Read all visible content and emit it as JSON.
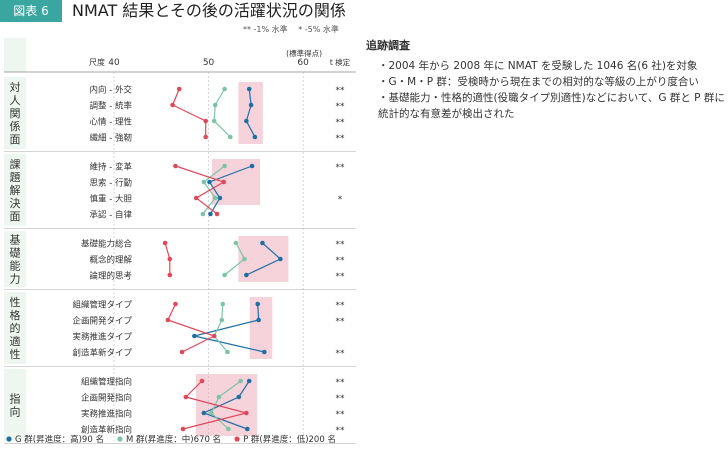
{
  "header": {
    "badge": "図表 6",
    "title": "NMAT 結果とその後の活躍状況の関係",
    "sig_legend": "**  -1% 水準　 *  -5% 水準"
  },
  "notes": {
    "title": "追跡調査",
    "items": [
      "・2004 年から 2008 年に NMAT を受験した 1046 名(6 社)を対象",
      "・G・M・P 群：受検時から現在までの相対的な等級の上がり度合い",
      "・基礎能力・性格的適性(役職タイプ別適性)などにおいて、G 群と P 群に統計的な有意差が検出された"
    ]
  },
  "colors": {
    "G": "#1f6fa3",
    "M": "#7cc4a5",
    "P": "#e0485a",
    "band": "#eef6f0",
    "highlight": "#f6d3db",
    "grid": "#bbbbbb"
  },
  "chart_data": {
    "type": "line",
    "scale_label": "尺度",
    "unit_note": "(標準得点)",
    "t_label": "t 検定",
    "x_ticks": [
      40,
      50,
      60
    ],
    "xlim": [
      40,
      62
    ],
    "series": [
      {
        "key": "G",
        "name": "G 群(昇進度：高)90 名"
      },
      {
        "key": "M",
        "name": "M 群(昇進度：中)670 名"
      },
      {
        "key": "P",
        "name": "P 群(昇進度：低)200 名"
      }
    ],
    "groups": [
      {
        "label": "対人関係面",
        "rows": [
          {
            "label": "内向 - 外交",
            "G": 54.3,
            "M": 51.7,
            "P": 46.9,
            "sig": "**"
          },
          {
            "label": "調整 - 統率",
            "G": 54.5,
            "M": 50.7,
            "P": 46.2,
            "sig": "**"
          },
          {
            "label": "心情 - 理性",
            "G": 54.0,
            "M": 50.6,
            "P": 49.7,
            "sig": "**"
          },
          {
            "label": "繊細 - 強靭",
            "G": 54.9,
            "M": 52.3,
            "P": 49.7,
            "sig": "**"
          }
        ]
      },
      {
        "label": "課題解決面",
        "rows": [
          {
            "label": "維持 - 変革",
            "G": 54.6,
            "M": 51.7,
            "P": 46.5,
            "sig": "**"
          },
          {
            "label": "思索 - 行動",
            "G": 50.1,
            "M": 49.5,
            "P": 51.6,
            "sig": ""
          },
          {
            "label": "慎重 - 大胆",
            "G": 51.2,
            "M": 50.7,
            "P": 48.7,
            "sig": "*"
          },
          {
            "label": "承認 - 自律",
            "G": 50.2,
            "M": 49.4,
            "P": 50.9,
            "sig": ""
          }
        ]
      },
      {
        "label": "基礎能力",
        "rows": [
          {
            "label": "基礎能力総合",
            "G": 55.7,
            "M": 52.9,
            "P": 45.4,
            "sig": "**"
          },
          {
            "label": "概念的理解",
            "G": 57.6,
            "M": 53.8,
            "P": 45.9,
            "sig": "**"
          },
          {
            "label": "論理的思考",
            "G": 54.0,
            "M": 51.7,
            "P": 45.9,
            "sig": "**"
          }
        ]
      },
      {
        "label": "性格的適性",
        "rows": [
          {
            "label": "組織管理タイプ",
            "G": 55.2,
            "M": 51.5,
            "P": 46.5,
            "sig": "**"
          },
          {
            "label": "企画開発タイプ",
            "G": 55.3,
            "M": 51.4,
            "P": 45.7,
            "sig": "**"
          },
          {
            "label": "実務推進タイプ",
            "G": 48.5,
            "M": 50.6,
            "P": 50.6,
            "sig": ""
          },
          {
            "label": "創造革新タイプ",
            "G": 55.9,
            "M": 52.0,
            "P": 47.2,
            "sig": "**"
          }
        ]
      },
      {
        "label": "指向",
        "rows": [
          {
            "label": "組織管理指向",
            "G": 54.3,
            "M": 53.4,
            "P": 49.3,
            "sig": "**"
          },
          {
            "label": "企画開発指向",
            "G": 53.2,
            "M": 51.1,
            "P": 47.6,
            "sig": "**"
          },
          {
            "label": "実務推進指向",
            "G": 49.5,
            "M": 50.3,
            "P": 54.0,
            "sig": "**"
          },
          {
            "label": "創造革新指向",
            "G": 54.1,
            "M": 52.1,
            "P": 47.3,
            "sig": "**"
          }
        ]
      }
    ]
  }
}
